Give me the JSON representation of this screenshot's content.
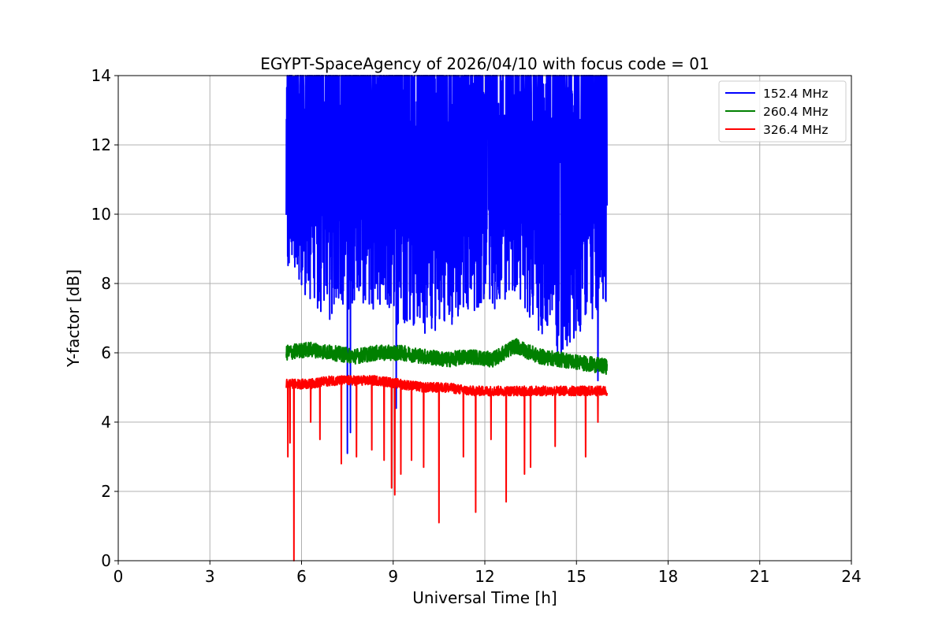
{
  "chart_data": {
    "type": "line",
    "title": "EGYPT-SpaceAgency of 2026/04/10 with focus code = 01",
    "xlabel": "Universal Time [h]",
    "ylabel": "Y-factor [dB]",
    "xlim": [
      0,
      24
    ],
    "ylim": [
      0,
      14
    ],
    "xticks": [
      0,
      3,
      6,
      9,
      12,
      15,
      18,
      21,
      24
    ],
    "yticks": [
      0,
      2,
      4,
      6,
      8,
      10,
      12,
      14
    ],
    "grid": true,
    "legend_position": "top-right",
    "time_range": [
      5.5,
      16.0
    ],
    "series": [
      {
        "name": " 152.4 MHz",
        "color": "#0000ff",
        "range_low": [
          8.3,
          7.4,
          6.9,
          7.4,
          7.2,
          6.6,
          6.4,
          6.7,
          7.0,
          7.2,
          7.7,
          6.6,
          5.7,
          6.8,
          7.3
        ],
        "range_high": [
          14,
          14,
          14,
          14,
          14,
          14,
          14,
          14,
          14,
          14,
          14,
          14,
          14,
          14,
          14
        ],
        "dips": [
          [
            7.5,
            3.1
          ],
          [
            7.6,
            3.7
          ],
          [
            9.1,
            4.4
          ],
          [
            14.5,
            5.7
          ],
          [
            15.7,
            5.2
          ]
        ]
      },
      {
        "name": " 260.4 MHz",
        "color": "#008000",
        "baseline": [
          6.0,
          6.1,
          6.0,
          5.9,
          6.0,
          6.0,
          5.9,
          5.8,
          5.9,
          5.8,
          6.2,
          5.9,
          5.8,
          5.7,
          5.6
        ],
        "noise": 0.22
      },
      {
        "name": " 326.4 MHz",
        "color": "#ff0000",
        "baseline": [
          5.1,
          5.1,
          5.2,
          5.2,
          5.2,
          5.1,
          5.0,
          5.0,
          4.9,
          4.9,
          4.9,
          4.9,
          4.9,
          4.9,
          4.9
        ],
        "noise": 0.14,
        "dips": [
          [
            5.55,
            3.0
          ],
          [
            5.62,
            3.4
          ],
          [
            5.75,
            0.0
          ],
          [
            6.3,
            4.0
          ],
          [
            6.6,
            3.5
          ],
          [
            7.3,
            2.8
          ],
          [
            7.8,
            3.0
          ],
          [
            8.3,
            3.2
          ],
          [
            8.7,
            2.9
          ],
          [
            8.95,
            2.1
          ],
          [
            9.05,
            1.9
          ],
          [
            9.25,
            2.5
          ],
          [
            9.6,
            2.9
          ],
          [
            10.0,
            2.7
          ],
          [
            10.5,
            1.1
          ],
          [
            11.3,
            3.0
          ],
          [
            11.7,
            1.4
          ],
          [
            12.2,
            3.5
          ],
          [
            12.7,
            1.7
          ],
          [
            13.3,
            2.5
          ],
          [
            13.5,
            2.7
          ],
          [
            14.3,
            3.3
          ],
          [
            15.3,
            3.0
          ],
          [
            15.7,
            4.0
          ]
        ]
      }
    ]
  }
}
